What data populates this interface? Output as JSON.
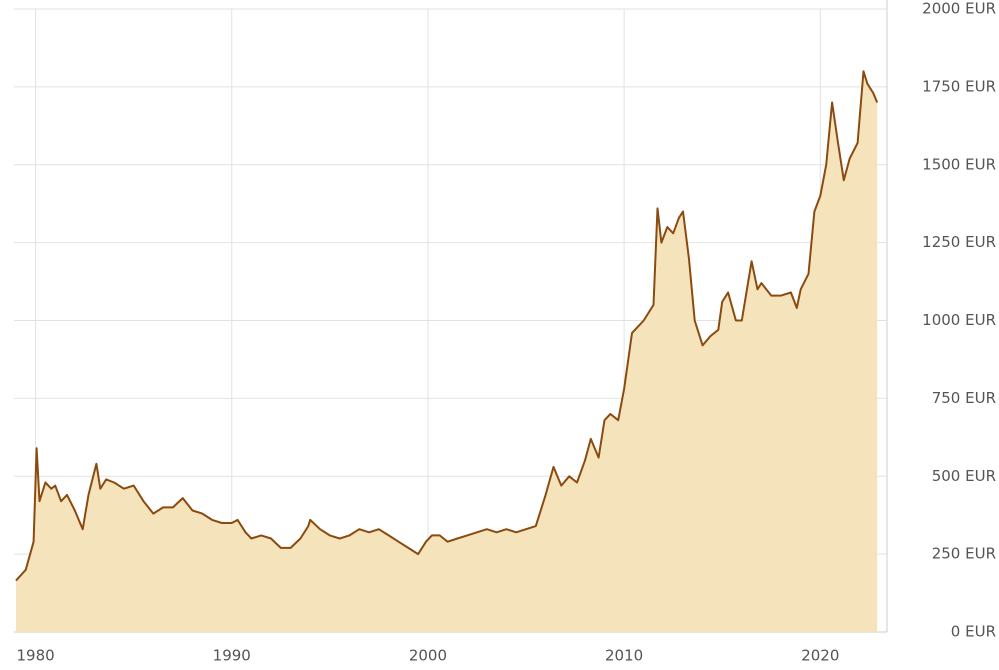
{
  "chart_data": {
    "type": "area",
    "x": [
      1979.0,
      1979.5,
      1979.9,
      1980.05,
      1980.2,
      1980.5,
      1980.8,
      1981.0,
      1981.3,
      1981.6,
      1982.0,
      1982.4,
      1982.7,
      1983.1,
      1983.3,
      1983.6,
      1984.0,
      1984.5,
      1985.0,
      1985.5,
      1986.0,
      1986.5,
      1987.0,
      1987.5,
      1988.0,
      1988.5,
      1989.0,
      1989.5,
      1990.0,
      1990.3,
      1990.7,
      1991.0,
      1991.5,
      1992.0,
      1992.5,
      1993.0,
      1993.5,
      1993.9,
      1994.0,
      1994.5,
      1995.0,
      1995.5,
      1996.0,
      1996.5,
      1997.0,
      1997.5,
      1998.0,
      1998.5,
      1999.0,
      1999.5,
      1999.9,
      2000.2,
      2000.6,
      2001.0,
      2001.5,
      2002.0,
      2002.5,
      2003.0,
      2003.5,
      2004.0,
      2004.5,
      2005.0,
      2005.5,
      2006.0,
      2006.4,
      2006.8,
      2007.2,
      2007.6,
      2008.0,
      2008.3,
      2008.7,
      2009.0,
      2009.3,
      2009.7,
      2010.0,
      2010.4,
      2010.7,
      2011.0,
      2011.5,
      2011.7,
      2011.9,
      2012.2,
      2012.5,
      2012.8,
      2013.0,
      2013.3,
      2013.6,
      2014.0,
      2014.4,
      2014.8,
      2015.0,
      2015.3,
      2015.7,
      2016.0,
      2016.5,
      2016.8,
      2017.0,
      2017.5,
      2018.0,
      2018.5,
      2018.8,
      2019.0,
      2019.4,
      2019.7,
      2020.0,
      2020.3,
      2020.6,
      2020.9,
      2021.2,
      2021.5,
      2021.9,
      2022.2,
      2022.4,
      2022.7,
      2022.9
    ],
    "values": [
      165,
      200,
      290,
      590,
      420,
      480,
      460,
      470,
      420,
      440,
      390,
      330,
      440,
      540,
      460,
      490,
      480,
      460,
      470,
      420,
      380,
      400,
      400,
      430,
      390,
      380,
      360,
      350,
      350,
      360,
      320,
      300,
      310,
      300,
      270,
      270,
      300,
      340,
      360,
      330,
      310,
      300,
      310,
      330,
      320,
      330,
      310,
      290,
      270,
      250,
      290,
      310,
      310,
      290,
      300,
      310,
      320,
      330,
      320,
      330,
      320,
      330,
      340,
      440,
      530,
      470,
      500,
      480,
      550,
      620,
      560,
      680,
      700,
      680,
      780,
      960,
      980,
      1000,
      1050,
      1360,
      1250,
      1300,
      1280,
      1330,
      1350,
      1200,
      1000,
      920,
      950,
      970,
      1060,
      1090,
      1000,
      1000,
      1190,
      1100,
      1120,
      1080,
      1080,
      1090,
      1040,
      1100,
      1150,
      1350,
      1400,
      1500,
      1700,
      1570,
      1450,
      1520,
      1570,
      1800,
      1760,
      1730,
      1700
    ],
    "line_color": "#8b4a0f",
    "fill_color": "#f5e4bb",
    "xlim": [
      1978.9,
      2023.4
    ],
    "xticks": [
      1980,
      1990,
      2000,
      2010,
      2020
    ],
    "ylim": [
      0,
      2000
    ],
    "yticks": [
      {
        "value": 0,
        "label": "0 EUR"
      },
      {
        "value": 250,
        "label": "250 EUR"
      },
      {
        "value": 500,
        "label": "500 EUR"
      },
      {
        "value": 750,
        "label": "750 EUR"
      },
      {
        "value": 1000,
        "label": "1000 EUR"
      },
      {
        "value": 1250,
        "label": "1250 EUR"
      },
      {
        "value": 1500,
        "label": "1500 EUR"
      },
      {
        "value": 1750,
        "label": "1750 EUR"
      },
      {
        "value": 2000,
        "label": "2000 EUR"
      }
    ],
    "grid": true
  }
}
